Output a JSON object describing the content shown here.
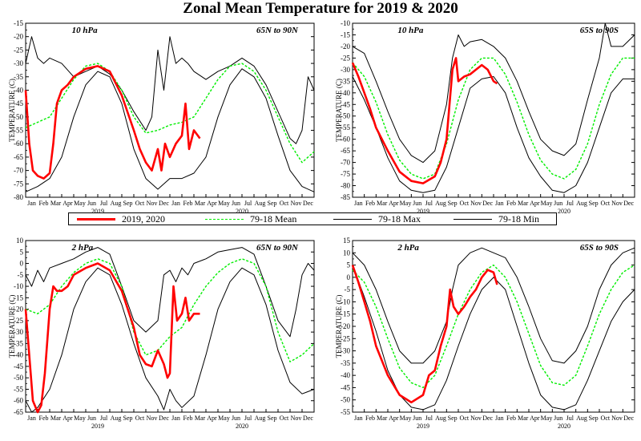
{
  "title": "Zonal Mean Temperature for 2019 & 2020",
  "colors": {
    "obs": "#ff0000",
    "mean": "#00ee00",
    "max": "#000000",
    "min": "#000000"
  },
  "legend": [
    {
      "label": "2019, 2020",
      "style": "obs"
    },
    {
      "label": "79-18 Mean",
      "style": "mean"
    },
    {
      "label": "79-18 Max",
      "style": "max"
    },
    {
      "label": "79-18 Min",
      "style": "min"
    }
  ],
  "month_labels": [
    "Jan",
    "Feb",
    "Mar",
    "Apr",
    "May",
    "Jun",
    "Jul",
    "Aug",
    "Sep",
    "Oct",
    "Nov",
    "Dec",
    "Jan",
    "Feb",
    "Mar",
    "Apr",
    "May",
    "Jun",
    "Jul",
    "Aug",
    "Sep",
    "Oct",
    "Nov",
    "Dec"
  ],
  "year_labels": [
    "2019",
    "2020"
  ],
  "chart_data": [
    {
      "type": "line",
      "level": "10 hPa",
      "region": "65N to 90N",
      "ylabel": "TEMPERATURE (C)",
      "ylim": [
        -80,
        -15
      ],
      "yticks": [
        -80,
        -75,
        -70,
        -65,
        -60,
        -55,
        -50,
        -45,
        -40,
        -35,
        -30,
        -25,
        -20,
        -15
      ],
      "series": [
        {
          "name": "79-18 Mean",
          "style": "mean",
          "x": [
            0,
            1,
            2,
            3,
            4,
            5,
            6,
            7,
            8,
            9,
            10,
            11,
            12,
            13,
            14,
            15,
            16,
            17,
            18,
            19,
            20,
            21,
            22,
            23,
            24
          ],
          "values": [
            -54,
            -52,
            -50,
            -43,
            -36,
            -31,
            -30,
            -33,
            -40,
            -50,
            -56,
            -55,
            -53,
            -52,
            -50,
            -43,
            -36,
            -31,
            -30,
            -33,
            -40,
            -50,
            -60,
            -67,
            -63
          ]
        },
        {
          "name": "79-18 Max",
          "style": "max",
          "x": [
            0,
            0.5,
            1,
            1.5,
            2,
            3,
            4,
            5,
            6,
            7,
            8,
            9,
            10,
            10.5,
            11,
            11.5,
            12,
            12.5,
            13,
            13.5,
            14,
            15,
            16,
            17,
            18,
            19,
            20,
            21,
            22,
            22.5,
            23,
            23.5,
            24
          ],
          "values": [
            -30,
            -20,
            -28,
            -30,
            -28,
            -30,
            -35,
            -33,
            -31,
            -34,
            -40,
            -48,
            -55,
            -50,
            -25,
            -40,
            -20,
            -30,
            -28,
            -30,
            -33,
            -36,
            -33,
            -31,
            -28,
            -31,
            -38,
            -48,
            -58,
            -60,
            -55,
            -35,
            -40
          ]
        },
        {
          "name": "79-18 Min",
          "style": "min",
          "x": [
            0,
            1,
            2,
            3,
            4,
            5,
            6,
            7,
            8,
            9,
            10,
            11,
            12,
            13,
            14,
            15,
            16,
            17,
            18,
            19,
            20,
            21,
            22,
            23,
            24
          ],
          "values": [
            -78,
            -76,
            -73,
            -65,
            -50,
            -38,
            -33,
            -35,
            -45,
            -62,
            -73,
            -77,
            -73,
            -73,
            -71,
            -65,
            -50,
            -38,
            -32,
            -35,
            -43,
            -57,
            -70,
            -76,
            -78
          ]
        },
        {
          "name": "2019, 2020",
          "style": "obs",
          "x": [
            0,
            0.3,
            0.6,
            1,
            1.5,
            2,
            2.3,
            2.6,
            3,
            3.5,
            4,
            5,
            6,
            7,
            8,
            9,
            9.5,
            10,
            10.5,
            11,
            11.3,
            11.6,
            12,
            12.5,
            13,
            13.3,
            13.6,
            14,
            14.5
          ],
          "values": [
            -40,
            -60,
            -70,
            -72,
            -73,
            -71,
            -60,
            -45,
            -40,
            -38,
            -35,
            -32,
            -31,
            -33,
            -42,
            -55,
            -62,
            -67,
            -70,
            -62,
            -70,
            -60,
            -65,
            -60,
            -57,
            -45,
            -62,
            -55,
            -58
          ]
        }
      ]
    },
    {
      "type": "line",
      "level": "10 hPa",
      "region": "65S to 90S",
      "ylabel": "TEMPERATURE (C)",
      "ylim": [
        -85,
        -10
      ],
      "yticks": [
        -85,
        -80,
        -75,
        -70,
        -65,
        -60,
        -55,
        -50,
        -45,
        -40,
        -35,
        -30,
        -25,
        -20,
        -15,
        -10
      ],
      "series": [
        {
          "name": "79-18 Mean",
          "style": "mean",
          "x": [
            0,
            1,
            2,
            3,
            4,
            5,
            6,
            7,
            8,
            9,
            10,
            11,
            12,
            13,
            14,
            15,
            16,
            17,
            18,
            19,
            20,
            21,
            22,
            23,
            24
          ],
          "values": [
            -27,
            -33,
            -44,
            -58,
            -69,
            -75,
            -77,
            -75,
            -62,
            -43,
            -30,
            -25,
            -25,
            -32,
            -44,
            -58,
            -69,
            -75,
            -77,
            -73,
            -62,
            -45,
            -32,
            -25,
            -25
          ]
        },
        {
          "name": "79-18 Max",
          "style": "max",
          "x": [
            0,
            1,
            2,
            3,
            4,
            5,
            6,
            7,
            8,
            8.5,
            9,
            9.5,
            10,
            11,
            12,
            13,
            14,
            15,
            16,
            17,
            18,
            19,
            20,
            21,
            21.5,
            22,
            23,
            24
          ],
          "values": [
            -20,
            -23,
            -35,
            -48,
            -60,
            -67,
            -70,
            -65,
            -45,
            -25,
            -15,
            -20,
            -18,
            -17,
            -20,
            -25,
            -35,
            -48,
            -60,
            -65,
            -67,
            -62,
            -43,
            -25,
            -10,
            -20,
            -20,
            -15
          ]
        },
        {
          "name": "79-18 Min",
          "style": "min",
          "x": [
            0,
            1,
            2,
            3,
            4,
            5,
            6,
            7,
            8,
            9,
            10,
            11,
            12,
            13,
            14,
            15,
            16,
            17,
            18,
            19,
            20,
            21,
            22,
            23,
            24
          ],
          "values": [
            -33,
            -43,
            -55,
            -68,
            -78,
            -82,
            -83,
            -82,
            -72,
            -55,
            -38,
            -34,
            -33,
            -40,
            -55,
            -68,
            -76,
            -82,
            -83,
            -80,
            -70,
            -55,
            -40,
            -34,
            -34
          ]
        },
        {
          "name": "2019, 2020",
          "style": "obs",
          "x": [
            0,
            0.5,
            1,
            1.5,
            2,
            3,
            4,
            5,
            6,
            7,
            7.5,
            8,
            8.5,
            8.8,
            9,
            9.5,
            10,
            10.5,
            11,
            11.5,
            12,
            12.3
          ],
          "values": [
            -27,
            -33,
            -40,
            -47,
            -55,
            -65,
            -74,
            -78,
            -79,
            -76,
            -70,
            -60,
            -30,
            -25,
            -35,
            -33,
            -32,
            -30,
            -28,
            -30,
            -35,
            -36
          ]
        }
      ]
    },
    {
      "type": "line",
      "level": "2 hPa",
      "region": "65N to 90N",
      "ylabel": "TEMPERATURE (C)",
      "ylim": [
        -65,
        10
      ],
      "yticks": [
        -65,
        -60,
        -55,
        -50,
        -45,
        -40,
        -35,
        -30,
        -25,
        -20,
        -15,
        -10,
        -5,
        0,
        5,
        10
      ],
      "series": [
        {
          "name": "79-18 Mean",
          "style": "mean",
          "x": [
            0,
            1,
            2,
            3,
            4,
            5,
            6,
            7,
            8,
            9,
            10,
            11,
            12,
            13,
            14,
            15,
            16,
            17,
            18,
            19,
            20,
            21,
            22,
            23,
            24
          ],
          "values": [
            -20,
            -22,
            -18,
            -10,
            -4,
            0,
            2,
            0,
            -10,
            -30,
            -40,
            -38,
            -32,
            -28,
            -18,
            -10,
            -4,
            0,
            2,
            0,
            -10,
            -30,
            -43,
            -40,
            -35
          ]
        },
        {
          "name": "79-18 Max",
          "style": "max",
          "x": [
            0,
            0.5,
            1,
            1.5,
            2,
            3,
            4,
            5,
            6,
            7,
            8,
            9,
            10,
            11,
            11.5,
            12,
            12.5,
            13,
            13.5,
            14,
            15,
            16,
            17,
            18,
            19,
            20,
            21,
            22,
            22.5,
            23,
            23.5,
            24
          ],
          "values": [
            -5,
            -10,
            -3,
            -8,
            -2,
            0,
            2,
            5,
            7,
            4,
            -10,
            -25,
            -30,
            -25,
            -5,
            -3,
            -8,
            -2,
            -5,
            0,
            2,
            5,
            6,
            7,
            4,
            -10,
            -25,
            -32,
            -20,
            -5,
            0,
            -3
          ]
        },
        {
          "name": "79-18 Min",
          "style": "min",
          "x": [
            0,
            0.5,
            1,
            2,
            3,
            4,
            5,
            6,
            7,
            8,
            9,
            10,
            11,
            11.5,
            12,
            12.5,
            13,
            14,
            15,
            16,
            17,
            18,
            19,
            20,
            21,
            22,
            23,
            24
          ],
          "values": [
            -60,
            -65,
            -63,
            -55,
            -40,
            -20,
            -8,
            -2,
            -5,
            -18,
            -35,
            -50,
            -58,
            -64,
            -55,
            -60,
            -63,
            -58,
            -40,
            -20,
            -8,
            -2,
            -5,
            -18,
            -38,
            -52,
            -57,
            -55
          ]
        },
        {
          "name": "2019, 2020",
          "style": "obs",
          "x": [
            0,
            0.3,
            0.6,
            1,
            1.3,
            1.6,
            2,
            2.3,
            2.6,
            3,
            3.5,
            4,
            5,
            6,
            7,
            8,
            9,
            9.5,
            10,
            10.5,
            11,
            11.5,
            11.8,
            12,
            12.3,
            12.6,
            13,
            13.3,
            13.6,
            14,
            14.5
          ],
          "values": [
            -20,
            -40,
            -60,
            -65,
            -62,
            -48,
            -20,
            -10,
            -12,
            -12,
            -10,
            -5,
            -2,
            0,
            -3,
            -12,
            -28,
            -40,
            -44,
            -45,
            -38,
            -44,
            -50,
            -48,
            -10,
            -25,
            -22,
            -15,
            -25,
            -22,
            -22
          ]
        }
      ]
    },
    {
      "type": "line",
      "level": "2 hPa",
      "region": "65S to 90S",
      "ylabel": "TEMPERATURE (C)",
      "ylim": [
        -55,
        15
      ],
      "yticks": [
        -55,
        -50,
        -45,
        -40,
        -35,
        -30,
        -25,
        -20,
        -15,
        -10,
        -5,
        0,
        5,
        10,
        15
      ],
      "series": [
        {
          "name": "79-18 Mean",
          "style": "mean",
          "x": [
            0,
            1,
            2,
            3,
            4,
            5,
            6,
            7,
            8,
            9,
            10,
            11,
            12,
            13,
            14,
            15,
            16,
            17,
            18,
            19,
            20,
            21,
            22,
            23,
            24
          ],
          "values": [
            3,
            -2,
            -12,
            -25,
            -37,
            -43,
            -45,
            -40,
            -28,
            -15,
            -5,
            2,
            5,
            0,
            -10,
            -23,
            -36,
            -43,
            -44,
            -40,
            -28,
            -15,
            -5,
            2,
            5
          ]
        },
        {
          "name": "79-18 Max",
          "style": "max",
          "x": [
            0,
            1,
            2,
            3,
            4,
            5,
            6,
            7,
            8,
            8.5,
            9,
            10,
            11,
            12,
            13,
            14,
            15,
            16,
            17,
            18,
            19,
            20,
            21,
            22,
            23,
            24
          ],
          "values": [
            10,
            5,
            -5,
            -18,
            -30,
            -35,
            -35,
            -30,
            -18,
            -5,
            5,
            10,
            12,
            10,
            8,
            0,
            -12,
            -25,
            -34,
            -35,
            -30,
            -20,
            -5,
            5,
            10,
            12
          ]
        },
        {
          "name": "79-18 Min",
          "style": "min",
          "x": [
            0,
            1,
            2,
            3,
            4,
            5,
            6,
            7,
            8,
            9,
            10,
            11,
            12,
            13,
            14,
            15,
            16,
            17,
            18,
            19,
            20,
            21,
            22,
            23,
            24
          ],
          "values": [
            5,
            -8,
            -22,
            -38,
            -48,
            -53,
            -54,
            -52,
            -42,
            -28,
            -15,
            -5,
            0,
            -5,
            -20,
            -35,
            -48,
            -53,
            -54,
            -52,
            -42,
            -30,
            -18,
            -10,
            -5
          ]
        },
        {
          "name": "2019, 2020",
          "style": "obs",
          "x": [
            0,
            0.5,
            1,
            1.5,
            2,
            3,
            4,
            5,
            6,
            6.5,
            7,
            7.5,
            8,
            8.3,
            8.6,
            9,
            9.5,
            10,
            10.5,
            11,
            11.5,
            12,
            12.3
          ],
          "values": [
            5,
            -2,
            -10,
            -18,
            -28,
            -40,
            -48,
            -51,
            -48,
            -40,
            -38,
            -28,
            -20,
            -5,
            -12,
            -15,
            -12,
            -8,
            -5,
            0,
            3,
            2,
            -3
          ]
        }
      ]
    }
  ]
}
